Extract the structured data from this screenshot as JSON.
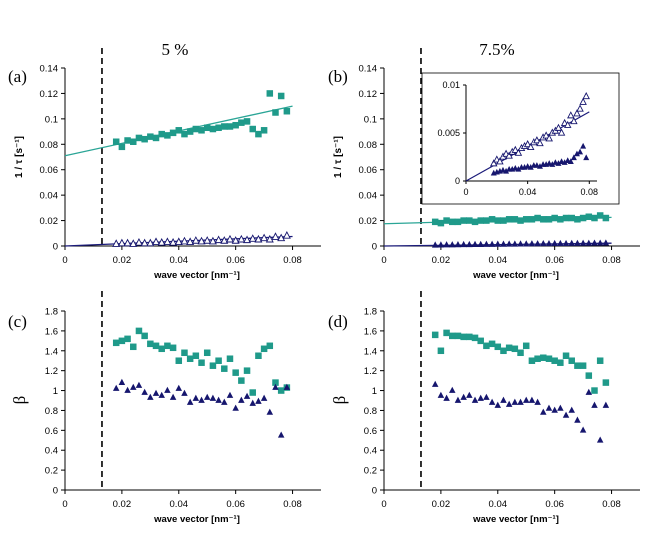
{
  "column_titles": [
    "5 %",
    "7.5%"
  ],
  "colors": {
    "teal": "#1f9a8a",
    "navy": "#16166e",
    "fit_teal": "#2aa596",
    "fit_navy": "#1b1b7a"
  },
  "chart_data": [
    {
      "id": "a",
      "type": "scatter",
      "panel_label": "(a)",
      "xlabel": "wave vector [nm⁻¹]",
      "ylabel": "1 / τ [s⁻¹]",
      "xlim": [
        0,
        0.09
      ],
      "ylim": [
        0,
        0.14
      ],
      "xticks": [
        0,
        0.02,
        0.04,
        0.06,
        0.08
      ],
      "xtick_labels": [
        "0",
        "0.02",
        "0.04",
        "0.06",
        "0.08"
      ],
      "yticks": [
        0,
        0.02,
        0.04,
        0.06,
        0.08,
        0.1,
        0.12,
        0.14
      ],
      "ytick_labels": [
        "0",
        "0.02",
        "0.04",
        "0.06",
        "0.08",
        "0.1",
        "0.12",
        "0.14"
      ],
      "dashed_x": 0.013,
      "series": [
        {
          "name": "teal squares",
          "marker": "square",
          "color": "#1f9a8a",
          "x": [
            0.018,
            0.02,
            0.022,
            0.024,
            0.026,
            0.028,
            0.03,
            0.032,
            0.034,
            0.036,
            0.038,
            0.04,
            0.042,
            0.044,
            0.046,
            0.048,
            0.05,
            0.052,
            0.054,
            0.056,
            0.058,
            0.06,
            0.062,
            0.064,
            0.066,
            0.068,
            0.07,
            0.072,
            0.074,
            0.076,
            0.078
          ],
          "y": [
            0.082,
            0.078,
            0.083,
            0.082,
            0.085,
            0.084,
            0.086,
            0.085,
            0.088,
            0.087,
            0.089,
            0.091,
            0.088,
            0.09,
            0.092,
            0.091,
            0.093,
            0.092,
            0.093,
            0.094,
            0.094,
            0.095,
            0.097,
            0.098,
            0.092,
            0.088,
            0.091,
            0.12,
            0.105,
            0.118,
            0.106
          ]
        },
        {
          "name": "open triangles",
          "marker": "triangle-open",
          "color": "#16166e",
          "x": [
            0.018,
            0.02,
            0.022,
            0.024,
            0.026,
            0.028,
            0.03,
            0.032,
            0.034,
            0.036,
            0.038,
            0.04,
            0.042,
            0.044,
            0.046,
            0.048,
            0.05,
            0.052,
            0.054,
            0.056,
            0.058,
            0.06,
            0.062,
            0.064,
            0.066,
            0.068,
            0.07,
            0.072,
            0.074,
            0.076,
            0.078
          ],
          "y": [
            0.0015,
            0.002,
            0.002,
            0.0015,
            0.0025,
            0.002,
            0.002,
            0.003,
            0.0025,
            0.003,
            0.0025,
            0.003,
            0.0035,
            0.003,
            0.004,
            0.0035,
            0.004,
            0.0035,
            0.0045,
            0.004,
            0.005,
            0.004,
            0.005,
            0.0045,
            0.0055,
            0.005,
            0.006,
            0.005,
            0.007,
            0.006,
            0.008
          ]
        }
      ],
      "fits": [
        {
          "color": "#2aa596",
          "x": [
            0,
            0.08
          ],
          "y": [
            0.071,
            0.11
          ]
        },
        {
          "color": "#1b1b7a",
          "x": [
            0,
            0.08
          ],
          "y": [
            0.0,
            0.0075
          ]
        }
      ]
    },
    {
      "id": "b",
      "type": "scatter",
      "panel_label": "(b)",
      "xlabel": "wave vector [nm⁻¹]",
      "ylabel": "1 / τ [s⁻¹]",
      "xlim": [
        0,
        0.09
      ],
      "ylim": [
        0,
        0.14
      ],
      "xticks": [
        0,
        0.02,
        0.04,
        0.06,
        0.08
      ],
      "xtick_labels": [
        "0",
        "0.02",
        "0.04",
        "0.06",
        "0.08"
      ],
      "yticks": [
        0,
        0.02,
        0.04,
        0.06,
        0.08,
        0.1,
        0.12,
        0.14
      ],
      "ytick_labels": [
        "0",
        "0.02",
        "0.04",
        "0.06",
        "0.08",
        "0.1",
        "0.12",
        "0.14"
      ],
      "dashed_x": 0.013,
      "series": [
        {
          "name": "teal squares",
          "marker": "square",
          "color": "#1f9a8a",
          "x": [
            0.018,
            0.02,
            0.022,
            0.024,
            0.026,
            0.028,
            0.03,
            0.032,
            0.034,
            0.036,
            0.038,
            0.04,
            0.042,
            0.044,
            0.046,
            0.048,
            0.05,
            0.052,
            0.054,
            0.056,
            0.058,
            0.06,
            0.062,
            0.064,
            0.066,
            0.068,
            0.07,
            0.072,
            0.074,
            0.076,
            0.078
          ],
          "y": [
            0.019,
            0.018,
            0.02,
            0.019,
            0.019,
            0.02,
            0.02,
            0.019,
            0.02,
            0.02,
            0.021,
            0.02,
            0.02,
            0.021,
            0.021,
            0.02,
            0.021,
            0.021,
            0.022,
            0.021,
            0.021,
            0.022,
            0.021,
            0.022,
            0.022,
            0.021,
            0.022,
            0.023,
            0.022,
            0.024,
            0.022
          ]
        },
        {
          "name": "filled triangles",
          "marker": "triangle",
          "color": "#16166e",
          "x": [
            0.018,
            0.02,
            0.022,
            0.024,
            0.026,
            0.028,
            0.03,
            0.032,
            0.034,
            0.036,
            0.038,
            0.04,
            0.042,
            0.044,
            0.046,
            0.048,
            0.05,
            0.052,
            0.054,
            0.056,
            0.058,
            0.06,
            0.062,
            0.064,
            0.066,
            0.068,
            0.07,
            0.072,
            0.074,
            0.076,
            0.078
          ],
          "y": [
            0.0006,
            0.0007,
            0.0008,
            0.0008,
            0.0009,
            0.001,
            0.001,
            0.0011,
            0.0011,
            0.0012,
            0.0012,
            0.0013,
            0.0013,
            0.0014,
            0.0014,
            0.0015,
            0.0015,
            0.0016,
            0.0016,
            0.0017,
            0.0017,
            0.0018,
            0.0018,
            0.0018,
            0.0019,
            0.0019,
            0.002,
            0.002,
            0.0021,
            0.0021,
            0.0022
          ]
        }
      ],
      "fits": [
        {
          "color": "#2aa596",
          "x": [
            0,
            0.08
          ],
          "y": [
            0.0175,
            0.0225
          ]
        },
        {
          "color": "#1b1b7a",
          "x": [
            0,
            0.08
          ],
          "y": [
            0.0,
            0.0022
          ]
        }
      ],
      "inset": {
        "xlim": [
          0,
          0.085
        ],
        "ylim": [
          0,
          0.01
        ],
        "xticks": [
          0,
          0.04,
          0.08
        ],
        "xtick_labels": [
          "0",
          "0.04",
          "0.08"
        ],
        "yticks": [
          0,
          0.005,
          0.01
        ],
        "ytick_labels": [
          "0",
          "0.005",
          "0.01"
        ],
        "series": [
          {
            "name": "open triangles",
            "marker": "triangle-open",
            "color": "#16166e",
            "x": [
              0.018,
              0.02,
              0.022,
              0.024,
              0.026,
              0.028,
              0.03,
              0.032,
              0.034,
              0.036,
              0.038,
              0.04,
              0.042,
              0.044,
              0.046,
              0.048,
              0.05,
              0.052,
              0.054,
              0.056,
              0.058,
              0.06,
              0.062,
              0.064,
              0.066,
              0.068,
              0.07,
              0.072,
              0.074,
              0.076,
              0.078
            ],
            "y": [
              0.0018,
              0.0022,
              0.002,
              0.0025,
              0.0028,
              0.0026,
              0.003,
              0.0032,
              0.0029,
              0.0034,
              0.0036,
              0.0038,
              0.0035,
              0.004,
              0.0042,
              0.0039,
              0.0045,
              0.0047,
              0.0044,
              0.005,
              0.0052,
              0.0055,
              0.005,
              0.006,
              0.0058,
              0.0068,
              0.0062,
              0.007,
              0.0075,
              0.0082,
              0.0088
            ]
          },
          {
            "name": "filled triangles",
            "marker": "triangle",
            "color": "#16166e",
            "x": [
              0.018,
              0.02,
              0.022,
              0.024,
              0.026,
              0.028,
              0.03,
              0.032,
              0.034,
              0.036,
              0.038,
              0.04,
              0.042,
              0.044,
              0.046,
              0.048,
              0.05,
              0.052,
              0.054,
              0.056,
              0.058,
              0.06,
              0.062,
              0.064,
              0.066,
              0.068,
              0.07,
              0.072,
              0.074,
              0.076,
              0.078
            ],
            "y": [
              0.0008,
              0.0009,
              0.001,
              0.0011,
              0.001,
              0.0012,
              0.0012,
              0.0013,
              0.0012,
              0.0014,
              0.0014,
              0.0015,
              0.0014,
              0.0016,
              0.0016,
              0.0015,
              0.0017,
              0.0017,
              0.0018,
              0.0017,
              0.0019,
              0.0018,
              0.002,
              0.0019,
              0.0021,
              0.002,
              0.0024,
              0.0028,
              0.003,
              0.0036,
              0.0024
            ]
          }
        ],
        "fits": [
          {
            "color": "#1b1b7a",
            "x": [
              0,
              0.08
            ],
            "y": [
              0.0,
              0.0072
            ]
          }
        ]
      }
    },
    {
      "id": "c",
      "type": "scatter",
      "panel_label": "(c)",
      "xlabel": "wave vector [nm⁻¹]",
      "ylabel": "β",
      "xlim": [
        0,
        0.09
      ],
      "ylim": [
        0,
        1.8
      ],
      "xticks": [
        0,
        0.02,
        0.04,
        0.06,
        0.08
      ],
      "xtick_labels": [
        "0",
        "0.02",
        "0.04",
        "0.06",
        "0.08"
      ],
      "yticks": [
        0,
        0.2,
        0.4,
        0.6,
        0.8,
        1.0,
        1.2,
        1.4,
        1.6,
        1.8
      ],
      "ytick_labels": [
        "0",
        "0.2",
        "0.4",
        "0.6",
        "0.8",
        "1",
        "1.2",
        "1.4",
        "1.6",
        "1.8"
      ],
      "dashed_x": 0.013,
      "series": [
        {
          "name": "teal squares",
          "marker": "square",
          "color": "#1f9a8a",
          "x": [
            0.018,
            0.02,
            0.022,
            0.024,
            0.026,
            0.028,
            0.03,
            0.032,
            0.034,
            0.036,
            0.038,
            0.04,
            0.042,
            0.044,
            0.046,
            0.048,
            0.05,
            0.052,
            0.054,
            0.056,
            0.058,
            0.06,
            0.062,
            0.064,
            0.066,
            0.068,
            0.07,
            0.072,
            0.074,
            0.076,
            0.078
          ],
          "y": [
            1.48,
            1.5,
            1.52,
            1.44,
            1.6,
            1.55,
            1.47,
            1.45,
            1.42,
            1.45,
            1.43,
            1.3,
            1.38,
            1.32,
            1.35,
            1.28,
            1.38,
            1.25,
            1.3,
            1.22,
            1.32,
            1.18,
            1.1,
            1.2,
            0.98,
            1.35,
            1.42,
            1.45,
            1.08,
            1.0,
            1.03
          ]
        },
        {
          "name": "filled triangles",
          "marker": "triangle",
          "color": "#16166e",
          "x": [
            0.018,
            0.02,
            0.022,
            0.024,
            0.026,
            0.028,
            0.03,
            0.032,
            0.034,
            0.036,
            0.038,
            0.04,
            0.042,
            0.044,
            0.046,
            0.048,
            0.05,
            0.052,
            0.054,
            0.056,
            0.058,
            0.06,
            0.062,
            0.064,
            0.066,
            0.068,
            0.07,
            0.072,
            0.074,
            0.076,
            0.078
          ],
          "y": [
            1.02,
            1.08,
            1.0,
            1.03,
            1.05,
            0.98,
            0.93,
            0.97,
            0.95,
            1.0,
            0.93,
            1.02,
            0.97,
            0.88,
            0.92,
            0.9,
            0.93,
            0.92,
            0.9,
            0.88,
            0.95,
            0.82,
            0.9,
            0.94,
            0.87,
            0.89,
            0.92,
            0.78,
            1.03,
            0.55,
            1.03
          ]
        }
      ]
    },
    {
      "id": "d",
      "type": "scatter",
      "panel_label": "(d)",
      "xlabel": "wave vector [nm⁻¹]",
      "ylabel": "β",
      "xlim": [
        0,
        0.09
      ],
      "ylim": [
        0,
        1.8
      ],
      "xticks": [
        0,
        0.02,
        0.04,
        0.06,
        0.08
      ],
      "xtick_labels": [
        "0",
        "0.02",
        "0.04",
        "0.06",
        "0.08"
      ],
      "yticks": [
        0,
        0.2,
        0.4,
        0.6,
        0.8,
        1.0,
        1.2,
        1.4,
        1.6,
        1.8
      ],
      "ytick_labels": [
        "0",
        "0.2",
        "0.4",
        "0.6",
        "0.8",
        "1",
        "1.2",
        "1.4",
        "1.6",
        "1.8"
      ],
      "dashed_x": 0.013,
      "series": [
        {
          "name": "teal squares",
          "marker": "square",
          "color": "#1f9a8a",
          "x": [
            0.018,
            0.02,
            0.022,
            0.024,
            0.026,
            0.028,
            0.03,
            0.032,
            0.034,
            0.036,
            0.038,
            0.04,
            0.042,
            0.044,
            0.046,
            0.048,
            0.05,
            0.052,
            0.054,
            0.056,
            0.058,
            0.06,
            0.062,
            0.064,
            0.066,
            0.068,
            0.07,
            0.072,
            0.074,
            0.076,
            0.078
          ],
          "y": [
            1.56,
            1.4,
            1.58,
            1.55,
            1.55,
            1.54,
            1.54,
            1.53,
            1.5,
            1.45,
            1.47,
            1.44,
            1.4,
            1.43,
            1.42,
            1.38,
            1.45,
            1.3,
            1.32,
            1.33,
            1.32,
            1.3,
            1.28,
            1.35,
            1.3,
            1.25,
            1.25,
            1.15,
            1.0,
            1.3,
            1.08
          ]
        },
        {
          "name": "filled triangles",
          "marker": "triangle",
          "color": "#16166e",
          "x": [
            0.018,
            0.02,
            0.022,
            0.024,
            0.026,
            0.028,
            0.03,
            0.032,
            0.034,
            0.036,
            0.038,
            0.04,
            0.042,
            0.044,
            0.046,
            0.048,
            0.05,
            0.052,
            0.054,
            0.056,
            0.058,
            0.06,
            0.062,
            0.064,
            0.066,
            0.068,
            0.07,
            0.072,
            0.074,
            0.076,
            0.078
          ],
          "y": [
            1.06,
            0.95,
            0.92,
            1.0,
            0.9,
            0.93,
            0.95,
            0.9,
            0.92,
            0.93,
            0.88,
            0.85,
            0.9,
            0.86,
            0.88,
            0.88,
            0.9,
            0.9,
            0.88,
            0.78,
            0.82,
            0.8,
            0.82,
            0.75,
            0.8,
            0.7,
            0.6,
            0.98,
            0.85,
            0.5,
            0.85
          ]
        }
      ]
    }
  ]
}
